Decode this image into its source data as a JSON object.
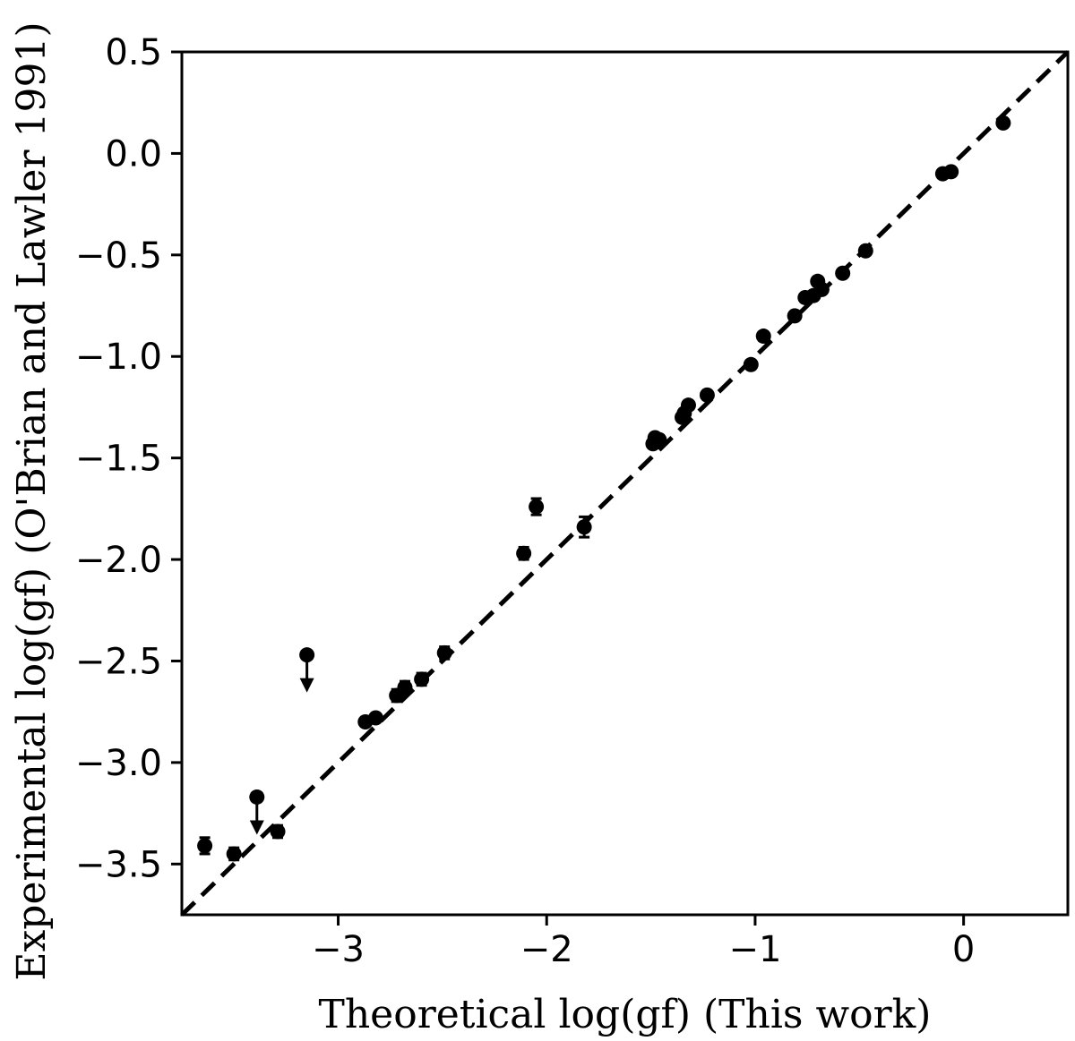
{
  "chart_data": {
    "type": "scatter",
    "title": "",
    "xlabel": "Theoretical log(gf) (This work)",
    "ylabel": "Experimental log(gf) (O'Brian and Lawler 1991)",
    "xlim": [
      -3.75,
      0.5
    ],
    "ylim": [
      -3.75,
      0.5
    ],
    "x_ticks": [
      -3,
      -2,
      -1,
      0
    ],
    "x_tick_labels": [
      "−3",
      "−2",
      "−1",
      "0"
    ],
    "y_ticks": [
      0.5,
      0.0,
      -0.5,
      -1.0,
      -1.5,
      -2.0,
      -2.5,
      -3.0,
      -3.5
    ],
    "y_tick_labels": [
      "0.5",
      "0.0",
      "−0.5",
      "−1.0",
      "−1.5",
      "−2.0",
      "−2.5",
      "−3.0",
      "−3.5"
    ],
    "grid": false,
    "legend": "none",
    "reference_line": {
      "slope": 1,
      "intercept": 0,
      "style": "dashed",
      "color": "#000000"
    },
    "marker_color": "#000000",
    "series": [
      {
        "points": [
          {
            "x": -3.64,
            "y": -3.41,
            "err": 0.04
          },
          {
            "x": -3.5,
            "y": -3.45,
            "err": 0.03
          },
          {
            "x": -3.29,
            "y": -3.34,
            "err": 0.03
          },
          {
            "x": -2.87,
            "y": -2.8,
            "err": 0.02
          },
          {
            "x": -2.82,
            "y": -2.78,
            "err": 0.02
          },
          {
            "x": -2.72,
            "y": -2.67,
            "err": 0.03
          },
          {
            "x": -2.68,
            "y": -2.63,
            "err": 0.03
          },
          {
            "x": -2.6,
            "y": -2.59,
            "err": 0.03
          },
          {
            "x": -2.49,
            "y": -2.46,
            "err": 0.03
          },
          {
            "x": -2.11,
            "y": -1.97,
            "err": 0.03
          },
          {
            "x": -2.05,
            "y": -1.74,
            "err": 0.04
          },
          {
            "x": -1.82,
            "y": -1.84,
            "err": 0.05
          },
          {
            "x": -1.49,
            "y": -1.43,
            "err": 0.02
          },
          {
            "x": -1.48,
            "y": -1.4,
            "err": 0.02
          },
          {
            "x": -1.46,
            "y": -1.41,
            "err": 0.02
          },
          {
            "x": -1.35,
            "y": -1.3,
            "err": 0.02
          },
          {
            "x": -1.34,
            "y": -1.28,
            "err": 0.02
          },
          {
            "x": -1.32,
            "y": -1.24,
            "err": 0.02
          },
          {
            "x": -1.23,
            "y": -1.19,
            "err": 0.02
          },
          {
            "x": -1.02,
            "y": -1.04,
            "err": 0.01
          },
          {
            "x": -0.96,
            "y": -0.9,
            "err": 0.01
          },
          {
            "x": -0.81,
            "y": -0.8,
            "err": 0.01
          },
          {
            "x": -0.76,
            "y": -0.71,
            "err": 0.01
          },
          {
            "x": -0.72,
            "y": -0.7,
            "err": 0.01
          },
          {
            "x": -0.7,
            "y": -0.63,
            "err": 0.01
          },
          {
            "x": -0.68,
            "y": -0.67,
            "err": 0.01
          },
          {
            "x": -0.58,
            "y": -0.59,
            "err": 0.01
          },
          {
            "x": -0.47,
            "y": -0.48,
            "err": 0.01
          },
          {
            "x": -0.1,
            "y": -0.1,
            "err": 0.01
          },
          {
            "x": -0.06,
            "y": -0.09,
            "err": 0.01
          },
          {
            "x": 0.19,
            "y": 0.15,
            "err": 0.01
          }
        ],
        "upper_limits": [
          {
            "x": -3.15,
            "y": -2.47
          },
          {
            "x": -3.39,
            "y": -3.17
          }
        ]
      }
    ]
  }
}
